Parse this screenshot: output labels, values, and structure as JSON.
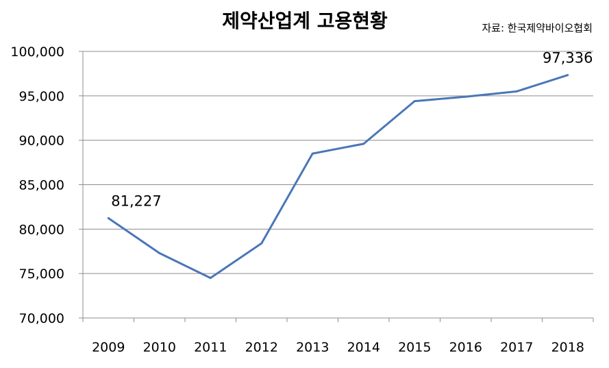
{
  "chart_data": {
    "type": "line",
    "title": "제약산업계 고용현황",
    "source": "자료: 한국제약바이오협회",
    "categories": [
      "2009",
      "2010",
      "2011",
      "2012",
      "2013",
      "2014",
      "2015",
      "2016",
      "2017",
      "2018"
    ],
    "series": [
      {
        "values": [
          81227,
          77300,
          74500,
          78400,
          88500,
          89600,
          94400,
          94900,
          95500,
          97336
        ],
        "color": "#4a76b7"
      }
    ],
    "data_labels": [
      {
        "index": 0,
        "text": "81,227"
      },
      {
        "index": 9,
        "text": "97,336"
      }
    ],
    "ylim": [
      70000,
      100000
    ],
    "yticks": [
      70000,
      75000,
      80000,
      85000,
      90000,
      95000,
      100000
    ],
    "ytick_labels": [
      "70,000",
      "75,000",
      "80,000",
      "85,000",
      "90,000",
      "95,000",
      "100,000"
    ],
    "grid": true,
    "legend": "none"
  }
}
